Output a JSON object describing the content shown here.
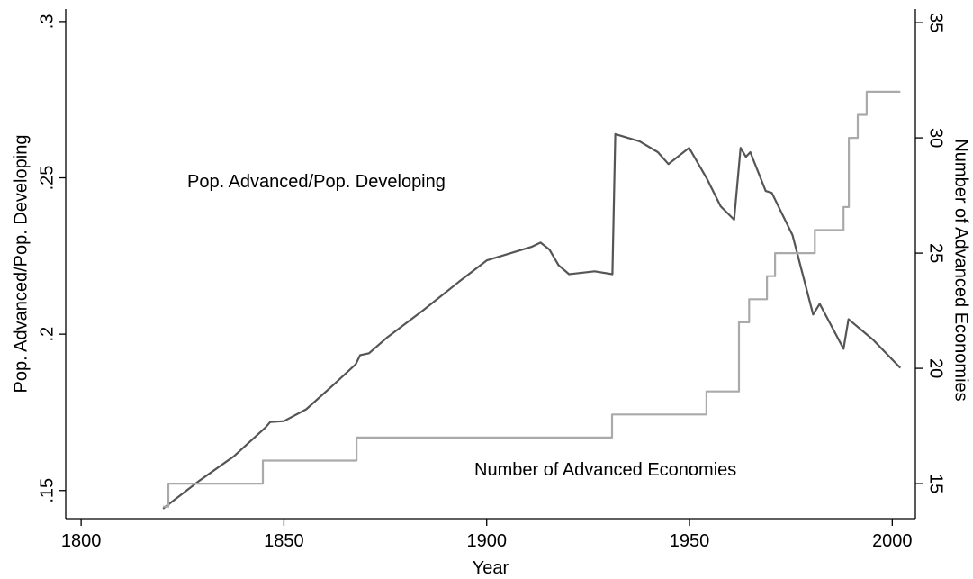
{
  "chart_data": {
    "type": "line",
    "xlabel": "Year",
    "ylabel": "Pop. Advanced/Pop. Developing",
    "y2label": "Number of Advanced Economies",
    "annotations": [
      "Pop. Advanced/Pop. Developing",
      "Number of Advanced Economies"
    ],
    "xlim": [
      1796.2,
      2005.7
    ],
    "xticks": [
      1800,
      1850,
      1900,
      1950,
      2000
    ],
    "ylim": [
      0.141,
      0.304
    ],
    "yticks": [
      {
        "value": 0.15,
        "label": ".15"
      },
      {
        "value": 0.2,
        "label": ".2"
      },
      {
        "value": 0.25,
        "label": ".25"
      },
      {
        "value": 0.3,
        "label": ".3"
      }
    ],
    "y2lim": [
      13.48,
      35.59
    ],
    "y2ticks": [
      15,
      20,
      25,
      30,
      35
    ],
    "grid": false,
    "series": [
      {
        "name": "Pop. Advanced/Pop. Developing",
        "color": "#555555",
        "x": [
          1820.2,
          1828.9,
          1837.7,
          1845.5,
          1846.6,
          1850,
          1855.5,
          1862.2,
          1867.7,
          1868.8,
          1871,
          1875.5,
          1884.4,
          1893.3,
          1900,
          1911,
          1913.3,
          1915.5,
          1917.7,
          1920.3,
          1926.6,
          1931,
          1931.7,
          1937.7,
          1942.2,
          1944.8,
          1949.9,
          1954.4,
          1957.7,
          1961,
          1962.6,
          1963.9,
          1965,
          1968.8,
          1970.3,
          1975.4,
          1980.5,
          1982.1,
          1988,
          1989.2,
          1990.5,
          1995.3,
          2002
        ],
        "values": [
          0.1442,
          0.1529,
          0.161,
          0.1702,
          0.1719,
          0.1722,
          0.176,
          0.1838,
          0.1904,
          0.1933,
          0.1939,
          0.199,
          0.2077,
          0.2169,
          0.2236,
          0.2279,
          0.2293,
          0.227,
          0.2221,
          0.2192,
          0.2201,
          0.2192,
          0.264,
          0.2617,
          0.2582,
          0.2544,
          0.2596,
          0.2495,
          0.2409,
          0.2366,
          0.2596,
          0.2567,
          0.2582,
          0.2458,
          0.2452,
          0.2317,
          0.2063,
          0.2097,
          0.1953,
          0.2048,
          0.2034,
          0.1982,
          0.1892
        ]
      },
      {
        "name": "Number of Advanced Economies",
        "color": "#aaaaaa",
        "axis": "y2",
        "x": [
          1820.2,
          1821.5,
          1821.5,
          1844.8,
          1844.8,
          1867.9,
          1867.9,
          1930.9,
          1930.9,
          1954.2,
          1954.2,
          1962.2,
          1962.2,
          1964.7,
          1964.7,
          1969.1,
          1969.1,
          1971.1,
          1971.1,
          1980.9,
          1980.9,
          1988,
          1988,
          1989.3,
          1989.3,
          1991.5,
          1991.5,
          1993.7,
          1993.7,
          2002
        ],
        "values": [
          14,
          14,
          15,
          15,
          16,
          16,
          17,
          17,
          18,
          18,
          19,
          19,
          22,
          22,
          23,
          23,
          24,
          24,
          25,
          25,
          26,
          26,
          27,
          27,
          30,
          30,
          31,
          31,
          32,
          32
        ]
      }
    ]
  }
}
